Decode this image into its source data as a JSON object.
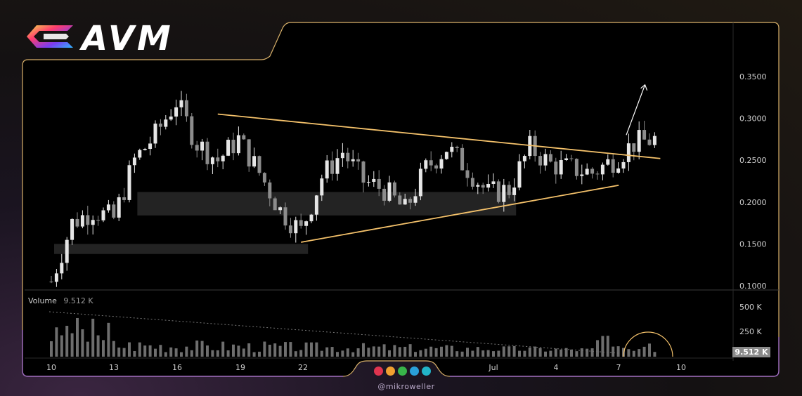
{
  "brand": {
    "logo_text": "AVM"
  },
  "watermark": {
    "handle": "@mikroweller"
  },
  "dots": [
    "#e0344f",
    "#f0a030",
    "#38b44a",
    "#2a9fd8",
    "#22b3c8"
  ],
  "volume": {
    "label": "Volume",
    "value": "9.512 K",
    "badge": "9.512 K"
  },
  "colors": {
    "trendline": "#f5c26b",
    "candle_up": "#e6e6e6",
    "candle_down": "#8c8c8c",
    "zone": "#3a3a3a",
    "frame": "#d9b16a"
  },
  "chart_data": {
    "type": "candlestick",
    "y_ticks": [
      "0.3500",
      "0.3000",
      "0.2500",
      "0.2000",
      "0.1500",
      "0.1000"
    ],
    "ylim": [
      0.095,
      0.37
    ],
    "x_ticks": [
      "10",
      "13",
      "16",
      "19",
      "22",
      "Jul",
      "4",
      "7",
      "10"
    ],
    "volume_ticks": [
      "500 K",
      "250 K"
    ],
    "series": [
      {
        "name": "Volume",
        "value": 9.512
      }
    ],
    "trendlines": [
      {
        "role": "upper",
        "from": [
          "Jun 18",
          0.305
        ],
        "to": [
          "Jul 9",
          0.252
        ]
      },
      {
        "role": "lower",
        "from": [
          "Jun 22",
          0.152
        ],
        "to": [
          "Jul 7",
          0.22
        ]
      }
    ],
    "zones": [
      {
        "from": "Jun 14",
        "to": "Jul 2",
        "low": 0.184,
        "high": 0.212
      },
      {
        "from": "Jun 10",
        "to": "Jun 22",
        "low": 0.138,
        "high": 0.15
      }
    ],
    "projection_arrow": {
      "from": [
        "Jul 10",
        0.28
      ],
      "to": [
        "Jul 11",
        0.34
      ]
    },
    "price_path": [
      [
        "Jun 10",
        0.105
      ],
      [
        "Jun 11",
        0.175
      ],
      [
        "Jun 12",
        0.19
      ],
      [
        "Jun 13",
        0.18
      ],
      [
        "Jun 14",
        0.25
      ],
      [
        "Jun 15",
        0.28
      ],
      [
        "Jun 16",
        0.32
      ],
      [
        "Jun 17",
        0.27
      ],
      [
        "Jun 18",
        0.25
      ],
      [
        "Jun 19",
        0.275
      ],
      [
        "Jun 20",
        0.235
      ],
      [
        "Jun 21",
        0.19
      ],
      [
        "Jun 22",
        0.165
      ],
      [
        "Jun 23",
        0.23
      ],
      [
        "Jun 24",
        0.26
      ],
      [
        "Jun 25",
        0.225
      ],
      [
        "Jun 26",
        0.215
      ],
      [
        "Jun 27",
        0.19
      ],
      [
        "Jun 28",
        0.24
      ],
      [
        "Jun 29",
        0.265
      ],
      [
        "Jun 30",
        0.24
      ],
      [
        "Jul 1",
        0.21
      ],
      [
        "Jul 2",
        0.215
      ],
      [
        "Jul 3",
        0.265
      ],
      [
        "Jul 4",
        0.245
      ],
      [
        "Jul 5",
        0.24
      ],
      [
        "Jul 6",
        0.235
      ],
      [
        "Jul 7",
        0.25
      ],
      [
        "Jul 8",
        0.27
      ],
      [
        "Jul 9",
        0.275
      ]
    ]
  }
}
